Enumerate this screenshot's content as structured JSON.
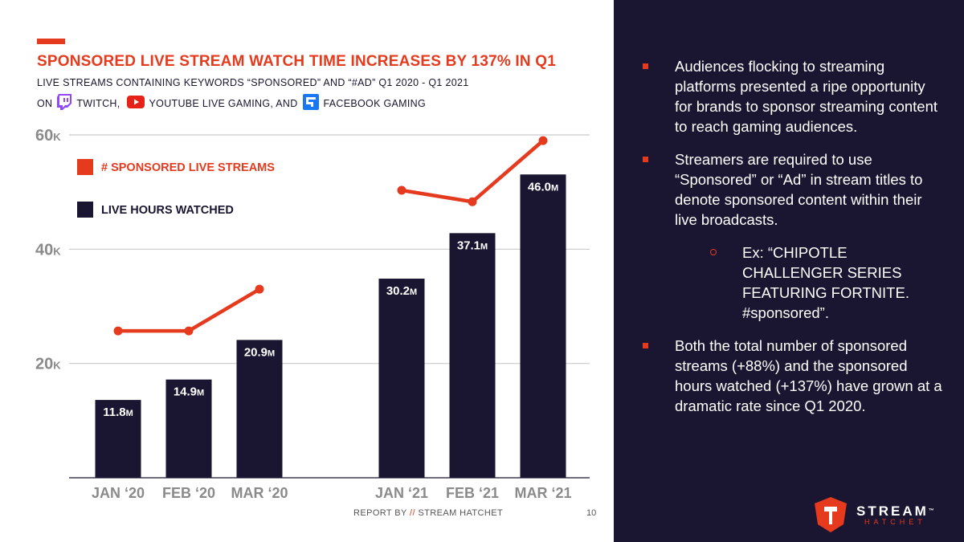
{
  "header": {
    "title": "SPONSORED LIVE STREAM WATCH TIME INCREASES BY 137% IN Q1",
    "subtitle": "LIVE STREAMS CONTAINING KEYWORDS “SPONSORED” AND “#AD” Q1 2020 - Q1 2021",
    "platforms_prefix": "ON",
    "platform_twitch": "TWITCH,",
    "platform_youtube": "YOUTUBE LIVE GAMING, AND",
    "platform_facebook": "FACEBOOK GAMING"
  },
  "colors": {
    "accent": "#e53a1e",
    "bar": "#1a1530",
    "panel": "#1a1530"
  },
  "chart_data": {
    "type": "bar",
    "title": "SPONSORED LIVE STREAM WATCH TIME INCREASES BY 137% IN Q1",
    "categories": [
      "JAN ‘20",
      "FEB ‘20",
      "MAR ‘20",
      "JAN ‘21",
      "FEB ‘21",
      "MAR ‘21"
    ],
    "ylim": [
      0,
      60000
    ],
    "yticks": [
      {
        "value": 20000,
        "label": "20",
        "suffix": "K"
      },
      {
        "value": 40000,
        "label": "40",
        "suffix": "K"
      },
      {
        "value": 60000,
        "label": "60",
        "suffix": "K"
      }
    ],
    "grid": true,
    "legend_placement": "top-left",
    "series": [
      {
        "name": "LIVE HOURS WATCHED",
        "kind": "bar",
        "values": [
          11.8,
          14.9,
          20.9,
          30.2,
          37.1,
          46.0
        ],
        "labels": [
          {
            "num": "11.8",
            "unit": "M"
          },
          {
            "num": "14.9",
            "unit": "M"
          },
          {
            "num": "20.9",
            "unit": "M"
          },
          {
            "num": "30.2",
            "unit": "M"
          },
          {
            "num": "37.1",
            "unit": "M"
          },
          {
            "num": "46.0",
            "unit": "M"
          }
        ],
        "bar_scale_max": 52
      },
      {
        "name": "# SPONSORED LIVE STREAMS",
        "kind": "line",
        "values": [
          25700,
          25700,
          33000,
          50300,
          48300,
          59000
        ],
        "segments": [
          [
            0,
            2
          ],
          [
            3,
            5
          ]
        ]
      }
    ]
  },
  "footer": {
    "report_by": "REPORT BY",
    "slashes": "//",
    "brand": "STREAM HATCHET",
    "page_number": "10"
  },
  "bullets": [
    {
      "text": "Audiences flocking to streaming platforms presented a ripe opportunity for brands to sponsor streaming content to reach gaming audiences."
    },
    {
      "text": "Streamers are required to use “Sponsored” or “Ad” in stream titles to denote sponsored content within their live broadcasts."
    },
    {
      "text": "Ex: “CHIPOTLE CHALLENGER SERIES FEATURING FORTNITE. #sponsored”."
    },
    {
      "text": "Both the total number of sponsored streams (+88%) and the sponsored hours watched (+137%) have grown at a dramatic rate since Q1 2020."
    }
  ],
  "logo": {
    "word1": "STREAM",
    "word2": "HATCHET",
    "tm": "™"
  }
}
